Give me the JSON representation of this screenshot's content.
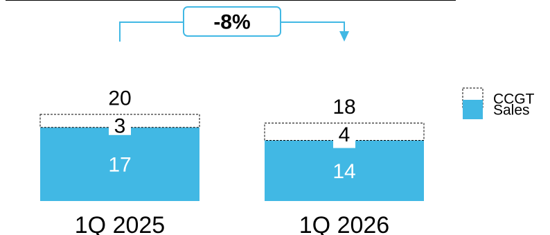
{
  "chart_data": {
    "type": "bar",
    "stacked": true,
    "categories": [
      "1Q 2025",
      "1Q 2026"
    ],
    "series": [
      {
        "name": "Sales",
        "values": [
          17,
          14
        ],
        "color": "#41b8e4"
      },
      {
        "name": "CCGT",
        "values": [
          3,
          4
        ],
        "color": "#ffffff",
        "style": "dashed-outline"
      }
    ],
    "totals": [
      20,
      18
    ],
    "change_badge": {
      "text": "-8%",
      "color": "#41b8e4"
    },
    "legend": {
      "position": "right",
      "items": [
        "CCGT",
        "Sales"
      ]
    },
    "grid": false
  }
}
